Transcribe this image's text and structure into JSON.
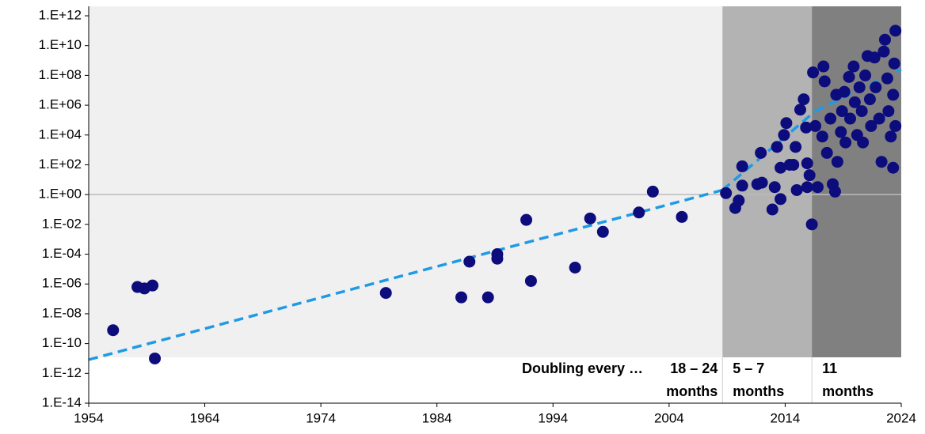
{
  "chart_data": {
    "type": "scatter",
    "log_y": true,
    "xlim": [
      1954,
      2024
    ],
    "xticks": [
      1954,
      1964,
      1974,
      1984,
      1994,
      2004,
      2014,
      2024
    ],
    "ylim": [
      1e-14,
      1000000000000.0
    ],
    "yticks": [
      {
        "value": 1000000000000.0,
        "label": "1.E+12"
      },
      {
        "value": 10000000000.0,
        "label": "1.E+10"
      },
      {
        "value": 100000000.0,
        "label": "1.E+08"
      },
      {
        "value": 1000000.0,
        "label": "1.E+06"
      },
      {
        "value": 10000.0,
        "label": "1.E+04"
      },
      {
        "value": 100.0,
        "label": "1.E+02"
      },
      {
        "value": 1,
        "label": "1.E+00"
      },
      {
        "value": 0.01,
        "label": "1.E-02"
      },
      {
        "value": 0.0001,
        "label": "1.E-04"
      },
      {
        "value": 1e-06,
        "label": "1.E-06"
      },
      {
        "value": 1e-08,
        "label": "1.E-08"
      },
      {
        "value": 1e-10,
        "label": "1.E-10"
      },
      {
        "value": 1e-12,
        "label": "1.E-12"
      },
      {
        "value": 1e-14,
        "label": "1.E-14"
      }
    ],
    "hline": 1,
    "color": "#0c0c7c",
    "x": [
      1956.1,
      1958.2,
      1958.8,
      1959.5,
      1959.7,
      1979.6,
      1986.1,
      1988.4,
      1986.8,
      1989.2,
      1989.2,
      1991.7,
      1992.1,
      1995.9,
      1997.2,
      1998.3,
      2001.4,
      2002.6,
      2005.1,
      2008.9,
      2009.7,
      2010.0,
      2010.3,
      2010.3,
      2011.6,
      2012.0,
      2011.9,
      2012.9,
      2013.1,
      2013.6,
      2013.3,
      2013.6,
      2013.9,
      2014.1,
      2014.4,
      2014.7,
      2015.0,
      2014.9,
      2015.3,
      2015.6,
      2015.8,
      2015.9,
      2016.1,
      2015.9,
      2016.3,
      2016.4,
      2016.6,
      2016.8,
      2017.2,
      2017.3,
      2017.4,
      2017.6,
      2017.9,
      2018.1,
      2018.3,
      2018.4,
      2018.5,
      2018.8,
      2018.9,
      2019.1,
      2019.2,
      2019.5,
      2019.6,
      2019.9,
      2020.0,
      2020.2,
      2020.4,
      2020.6,
      2020.7,
      2020.9,
      2021.1,
      2021.3,
      2021.4,
      2021.7,
      2021.8,
      2022.1,
      2022.3,
      2022.5,
      2022.6,
      2022.8,
      2022.9,
      2023.1,
      2023.3,
      2023.4,
      2023.5,
      2023.5,
      2023.3
    ],
    "values": [
      7.9e-10,
      6.3e-07,
      5e-07,
      7.9e-07,
      1e-11,
      2.5e-07,
      1.26e-07,
      1.26e-07,
      3.16e-05,
      0.0001,
      5e-05,
      0.02,
      1.58e-06,
      1.26e-05,
      0.025,
      0.00316,
      0.063,
      1.58,
      0.0316,
      1.26,
      0.126,
      0.4,
      4,
      79,
      5,
      6.3,
      630,
      0.1,
      3.16,
      0.5,
      1580,
      63,
      10000.0,
      63000.0,
      100,
      100,
      2,
      1580,
      500000.0,
      2500000.0,
      31600.0,
      126,
      20,
      3.16,
      0.01,
      158000000.0,
      40000.0,
      3.16,
      7900.0,
      400000000.0,
      40000000.0,
      630,
      126000.0,
      5,
      1.58,
      5000000.0,
      158,
      15800.0,
      400000.0,
      7900000.0,
      3160,
      79000000.0,
      126000.0,
      400000000.0,
      1580000.0,
      10000.0,
      15800000.0,
      400000.0,
      3160,
      100000000.0,
      2000000000.0,
      2500000.0,
      40000.0,
      1580000000.0,
      15800000.0,
      126000.0,
      158,
      4000000000.0,
      25000000000.0,
      63000000.0,
      400000.0,
      7900.0,
      63,
      630000000.0,
      100000000000.0,
      40000.0,
      5000000.0
    ],
    "trend_color": "#1f9ae6",
    "trends": [
      {
        "x": [
          1954,
          2008.6
        ],
        "values": [
          8.3e-12,
          2
        ]
      },
      {
        "x": [
          2008.6,
          2016.6
        ],
        "values": [
          2,
          400000.0
        ]
      },
      {
        "x": [
          2016.6,
          2024
        ],
        "values": [
          400000.0,
          250000000.0
        ]
      }
    ],
    "annotation": "Doubling every …",
    "annotation_color": "#1f2fd0",
    "regions": [
      {
        "start": 1954,
        "end": 2008.6,
        "color": "#f0f0f0",
        "label": [
          "18 – 24",
          "months"
        ]
      },
      {
        "start": 2008.6,
        "end": 2016.3,
        "color": "#b3b3b3",
        "label": [
          "5 – 7",
          "months"
        ]
      },
      {
        "start": 2016.3,
        "end": 2024,
        "color": "#808080",
        "label": [
          "11",
          "months"
        ]
      }
    ]
  }
}
